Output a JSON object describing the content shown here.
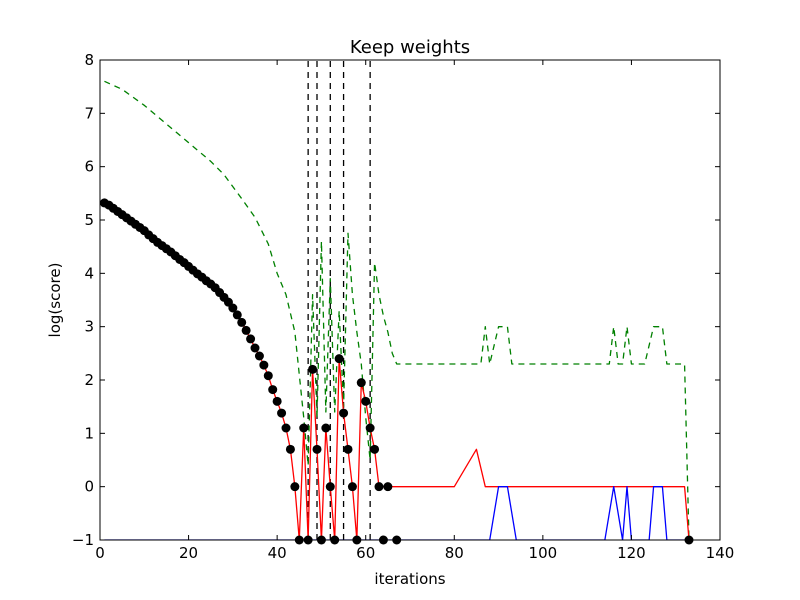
{
  "chart_data": {
    "type": "line",
    "title": "Keep weights",
    "xlabel": "iterations",
    "ylabel": "log(score)",
    "xlim": [
      0,
      140
    ],
    "ylim": [
      -1,
      8
    ],
    "xticks": [
      0,
      20,
      40,
      60,
      80,
      100,
      120,
      140
    ],
    "yticks": [
      -1,
      0,
      1,
      2,
      3,
      4,
      5,
      6,
      7,
      8
    ],
    "grid": false,
    "legend": "none",
    "series": [
      {
        "color": "#008000",
        "style": "dashed",
        "x": [
          1,
          5,
          10,
          15,
          20,
          25,
          28,
          32,
          35,
          38,
          40,
          42,
          44,
          45,
          46,
          47,
          48,
          49,
          50,
          51,
          52,
          53,
          54,
          55,
          56,
          57,
          58,
          59,
          60,
          61,
          62,
          63,
          64,
          65,
          66,
          67,
          70,
          80,
          86,
          87,
          88,
          90,
          92,
          93,
          100,
          110,
          115,
          116,
          117,
          118,
          119,
          120,
          121,
          123,
          125,
          127,
          128,
          130,
          132,
          133
        ],
        "y": [
          7.6,
          7.45,
          7.15,
          6.8,
          6.45,
          6.1,
          5.85,
          5.4,
          5.05,
          4.55,
          4.0,
          3.6,
          2.9,
          2.1,
          1.3,
          0.4,
          3.6,
          1.3,
          4.6,
          1.4,
          3.9,
          1.4,
          3.3,
          1.5,
          4.75,
          3.6,
          2.9,
          2.3,
          1.3,
          0.5,
          4.2,
          3.6,
          3.2,
          2.9,
          2.5,
          2.3,
          2.3,
          2.3,
          2.3,
          3.0,
          2.3,
          3.0,
          3.0,
          2.3,
          2.3,
          2.3,
          2.3,
          3.0,
          2.3,
          2.3,
          3.0,
          2.3,
          2.3,
          2.3,
          3.0,
          3.0,
          2.3,
          2.3,
          2.3,
          -1
        ]
      },
      {
        "color": "#ff0000",
        "style": "solid",
        "x": [
          1,
          2,
          3,
          4,
          5,
          6,
          7,
          8,
          9,
          10,
          11,
          12,
          13,
          14,
          15,
          16,
          17,
          18,
          19,
          20,
          21,
          22,
          23,
          24,
          25,
          26,
          27,
          28,
          29,
          30,
          31,
          32,
          33,
          34,
          35,
          36,
          37,
          38,
          39,
          40,
          41,
          42,
          43,
          44,
          45,
          46,
          47,
          48,
          49,
          50,
          51,
          52,
          53,
          54,
          55,
          56,
          57,
          58,
          59,
          60,
          61,
          62,
          63,
          64,
          65,
          66,
          67,
          68,
          70,
          80,
          85,
          87,
          88,
          90,
          100,
          110,
          120,
          130,
          132,
          133
        ],
        "y": [
          5.32,
          5.28,
          5.22,
          5.16,
          5.1,
          5.04,
          4.98,
          4.92,
          4.86,
          4.8,
          4.72,
          4.65,
          4.58,
          4.52,
          4.46,
          4.4,
          4.33,
          4.26,
          4.2,
          4.13,
          4.06,
          3.99,
          3.93,
          3.86,
          3.8,
          3.73,
          3.64,
          3.55,
          3.46,
          3.35,
          3.22,
          3.08,
          2.93,
          2.77,
          2.6,
          2.45,
          2.28,
          2.08,
          1.82,
          1.6,
          1.38,
          1.1,
          0.7,
          0,
          -1,
          1.1,
          -1,
          2.2,
          0.7,
          -1,
          1.1,
          0,
          -1,
          2.4,
          1.38,
          0.7,
          0,
          -1,
          1.95,
          1.6,
          1.1,
          0.7,
          0,
          0,
          0,
          0,
          0,
          0,
          0,
          0,
          0.7,
          0,
          0,
          0,
          0,
          0,
          0,
          0,
          0,
          -1
        ]
      },
      {
        "color": "#0000ff",
        "style": "solid",
        "x": [
          1,
          88,
          90,
          92,
          94,
          100,
          110,
          114,
          116,
          118,
          119,
          120,
          121,
          123,
          124,
          125,
          126,
          127,
          128,
          130,
          133
        ],
        "y": [
          -1,
          -1,
          0,
          0,
          -1,
          -1,
          -1,
          -1,
          0,
          -1,
          0,
          -1,
          -1,
          -1,
          -1,
          0,
          0,
          0,
          -1,
          -1,
          -1
        ]
      },
      {
        "color": "#000000",
        "style": "markers",
        "x": [
          1,
          2,
          3,
          4,
          5,
          6,
          7,
          8,
          9,
          10,
          11,
          12,
          13,
          14,
          15,
          16,
          17,
          18,
          19,
          20,
          21,
          22,
          23,
          24,
          25,
          26,
          27,
          28,
          29,
          30,
          31,
          32,
          33,
          34,
          35,
          36,
          37,
          38,
          39,
          40,
          41,
          42,
          43,
          44,
          45,
          46,
          47,
          48,
          49,
          50,
          51,
          52,
          53,
          54,
          55,
          56,
          57,
          58,
          59,
          60,
          61,
          62,
          63,
          64,
          65,
          67,
          133
        ],
        "y": [
          5.32,
          5.28,
          5.22,
          5.16,
          5.1,
          5.04,
          4.98,
          4.92,
          4.86,
          4.8,
          4.72,
          4.65,
          4.58,
          4.52,
          4.46,
          4.4,
          4.33,
          4.26,
          4.2,
          4.13,
          4.06,
          3.99,
          3.93,
          3.86,
          3.8,
          3.73,
          3.64,
          3.55,
          3.46,
          3.35,
          3.22,
          3.08,
          2.93,
          2.77,
          2.6,
          2.45,
          2.28,
          2.08,
          1.82,
          1.6,
          1.38,
          1.1,
          0.7,
          0,
          -1,
          1.1,
          -1,
          2.2,
          0.7,
          -1,
          1.1,
          0,
          -1,
          2.4,
          1.38,
          0.7,
          0,
          -1,
          1.95,
          1.6,
          1.1,
          0.7,
          0,
          -1,
          0,
          -1,
          -1
        ]
      }
    ],
    "vertical_lines": {
      "color": "#000000",
      "style": "dashed",
      "x": [
        47,
        49,
        52,
        55,
        61
      ],
      "y_from": -1,
      "y_to": 8
    }
  }
}
